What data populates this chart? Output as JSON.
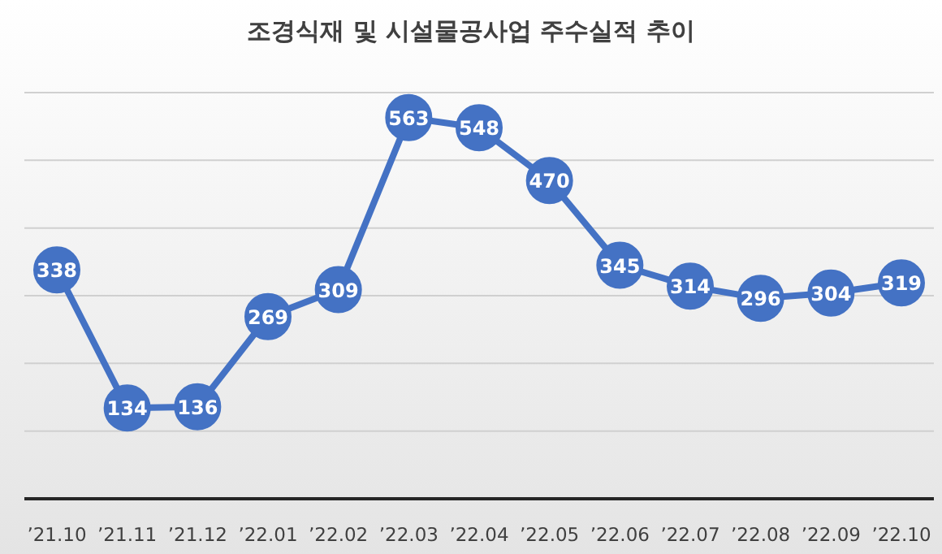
{
  "chart_data": {
    "type": "line",
    "title": "조경식재 및 시설물공사업 주수실적 추이",
    "categories": [
      "’21.10",
      "’21.11",
      "’21.12",
      "’22.01",
      "’22.02",
      "’22.03",
      "’22.04",
      "’22.05",
      "’22.06",
      "’22.07",
      "’22.08",
      "’22.09",
      "’22.10"
    ],
    "series": [
      {
        "color": "#4472c4",
        "values": [
          338,
          134,
          136,
          269,
          309,
          563,
          548,
          470,
          345,
          314,
          296,
          304,
          319
        ]
      }
    ],
    "yticks": [
      {
        "value": 0,
        "label": null
      },
      {
        "value": 100,
        "label": null
      },
      {
        "value": 200,
        "label": null
      },
      {
        "value": 300,
        "label": null
      },
      {
        "value": 400,
        "label": null
      },
      {
        "value": 500,
        "label": null
      },
      {
        "value": 600,
        "label": null
      }
    ],
    "tick_labels": "x",
    "grid": "y",
    "marker": "circle",
    "line_style": "solid",
    "data_labels": true
  }
}
